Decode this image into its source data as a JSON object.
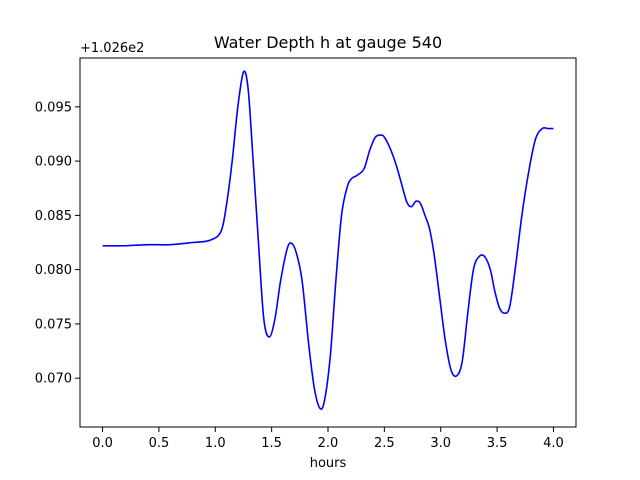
{
  "chart_data": {
    "type": "line",
    "title": "Water Depth h at gauge 540",
    "xlabel": "hours",
    "ylabel": "",
    "offset_label": "+1.026e2",
    "xlim": [
      -0.2,
      4.2
    ],
    "ylim": [
      0.0655,
      0.0995
    ],
    "xticks": [
      0.0,
      0.5,
      1.0,
      1.5,
      2.0,
      2.5,
      3.0,
      3.5,
      4.0
    ],
    "xtick_labels": [
      "0.0",
      "0.5",
      "1.0",
      "1.5",
      "2.0",
      "2.5",
      "3.0",
      "3.5",
      "4.0"
    ],
    "yticks": [
      0.07,
      0.075,
      0.08,
      0.085,
      0.09,
      0.095
    ],
    "ytick_labels": [
      "0.070",
      "0.075",
      "0.080",
      "0.085",
      "0.090",
      "0.095"
    ],
    "grid": false,
    "series": [
      {
        "color": "#0000ff",
        "x": [
          0.0,
          0.2,
          0.4,
          0.6,
          0.8,
          0.95,
          1.05,
          1.1,
          1.15,
          1.2,
          1.25,
          1.29,
          1.33,
          1.38,
          1.43,
          1.48,
          1.53,
          1.58,
          1.64,
          1.68,
          1.72,
          1.77,
          1.83,
          1.88,
          1.93,
          1.97,
          2.02,
          2.07,
          2.12,
          2.17,
          2.21,
          2.26,
          2.32,
          2.37,
          2.42,
          2.47,
          2.5,
          2.55,
          2.6,
          2.65,
          2.7,
          2.74,
          2.78,
          2.82,
          2.86,
          2.9,
          2.94,
          2.99,
          3.04,
          3.09,
          3.14,
          3.19,
          3.24,
          3.29,
          3.34,
          3.39,
          3.44,
          3.48,
          3.52,
          3.56,
          3.61,
          3.66,
          3.72,
          3.78,
          3.84,
          3.9,
          3.95,
          4.0
        ],
        "y": [
          0.0822,
          0.0822,
          0.0823,
          0.0823,
          0.0825,
          0.0827,
          0.0835,
          0.086,
          0.09,
          0.095,
          0.0982,
          0.0968,
          0.091,
          0.083,
          0.0755,
          0.0738,
          0.0755,
          0.079,
          0.082,
          0.0824,
          0.0815,
          0.079,
          0.073,
          0.069,
          0.0672,
          0.068,
          0.072,
          0.079,
          0.085,
          0.0876,
          0.0884,
          0.0887,
          0.0893,
          0.091,
          0.0922,
          0.0924,
          0.0922,
          0.0912,
          0.0898,
          0.088,
          0.0862,
          0.0858,
          0.0863,
          0.0861,
          0.085,
          0.0838,
          0.0815,
          0.0775,
          0.0735,
          0.0708,
          0.0702,
          0.0715,
          0.076,
          0.08,
          0.0812,
          0.0812,
          0.08,
          0.078,
          0.0765,
          0.076,
          0.0765,
          0.08,
          0.085,
          0.089,
          0.092,
          0.093,
          0.093,
          0.093
        ]
      }
    ]
  }
}
